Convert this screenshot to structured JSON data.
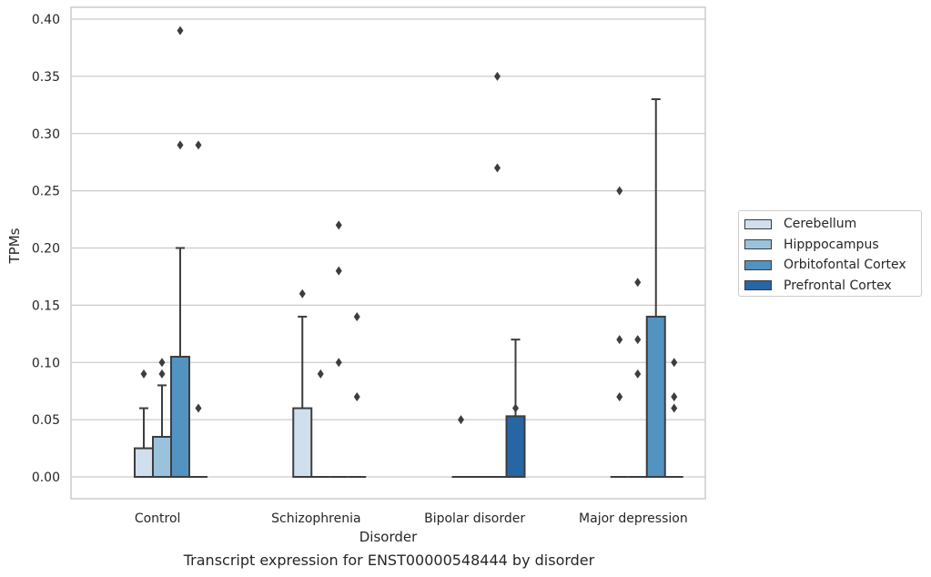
{
  "chart_data": {
    "type": "box",
    "caption": "Transcript expression for ENST00000548444 by disorder",
    "xlabel": "Disorder",
    "ylabel": "TPMs",
    "ylim": [
      -0.019,
      0.41
    ],
    "yticks": [
      "0.00",
      "0.05",
      "0.10",
      "0.15",
      "0.20",
      "0.25",
      "0.30",
      "0.35",
      "0.40"
    ],
    "grid": true,
    "legend_position": "right",
    "categories": [
      "Control",
      "Schizophrenia",
      "Bipolar disorder",
      "Major depression"
    ],
    "series": [
      {
        "name": "Cerebellum",
        "color": "#d0dfee",
        "boxes": [
          {
            "q1": 0.0,
            "median": 0.0,
            "q3": 0.025,
            "whisker_low": 0.0,
            "whisker_high": 0.06,
            "outliers": [
              0.09
            ]
          },
          {
            "q1": 0.0,
            "median": 0.0,
            "q3": 0.06,
            "whisker_low": 0.0,
            "whisker_high": 0.14,
            "outliers": [
              0.16
            ]
          },
          {
            "q1": 0.0,
            "median": 0.0,
            "q3": 0.0,
            "whisker_low": 0.0,
            "whisker_high": 0.0,
            "outliers": [
              0.05
            ]
          },
          {
            "q1": 0.0,
            "median": 0.0,
            "q3": 0.0,
            "whisker_low": 0.0,
            "whisker_high": 0.0,
            "outliers": [
              0.07,
              0.12,
              0.25
            ]
          }
        ]
      },
      {
        "name": "Hipppocampus",
        "color": "#9bc2dc",
        "boxes": [
          {
            "q1": 0.0,
            "median": 0.0,
            "q3": 0.035,
            "whisker_low": 0.0,
            "whisker_high": 0.08,
            "outliers": [
              0.09,
              0.1
            ]
          },
          {
            "q1": 0.0,
            "median": 0.0,
            "q3": 0.0,
            "whisker_low": 0.0,
            "whisker_high": 0.0,
            "outliers": [
              0.09
            ]
          },
          {
            "q1": 0.0,
            "median": 0.0,
            "q3": 0.0,
            "whisker_low": 0.0,
            "whisker_high": 0.0,
            "outliers": []
          },
          {
            "q1": 0.0,
            "median": 0.0,
            "q3": 0.0,
            "whisker_low": 0.0,
            "whisker_high": 0.0,
            "outliers": [
              0.09,
              0.12,
              0.17
            ]
          }
        ]
      },
      {
        "name": "Orbitofontal Cortex",
        "color": "#5293c1",
        "boxes": [
          {
            "q1": 0.0,
            "median": 0.0,
            "q3": 0.105,
            "whisker_low": 0.0,
            "whisker_high": 0.2,
            "outliers": [
              0.29,
              0.39
            ]
          },
          {
            "q1": 0.0,
            "median": 0.0,
            "q3": 0.0,
            "whisker_low": 0.0,
            "whisker_high": 0.0,
            "outliers": [
              0.1,
              0.18,
              0.22
            ]
          },
          {
            "q1": 0.0,
            "median": 0.0,
            "q3": 0.0,
            "whisker_low": 0.0,
            "whisker_high": 0.0,
            "outliers": [
              0.27,
              0.35
            ]
          },
          {
            "q1": 0.0,
            "median": 0.0,
            "q3": 0.14,
            "whisker_low": 0.0,
            "whisker_high": 0.33,
            "outliers": []
          }
        ]
      },
      {
        "name": "Prefrontal Cortex",
        "color": "#2766a5",
        "boxes": [
          {
            "q1": 0.0,
            "median": 0.0,
            "q3": 0.0,
            "whisker_low": 0.0,
            "whisker_high": 0.0,
            "outliers": [
              0.06,
              0.29
            ]
          },
          {
            "q1": 0.0,
            "median": 0.0,
            "q3": 0.0,
            "whisker_low": 0.0,
            "whisker_high": 0.0,
            "outliers": [
              0.07,
              0.14
            ]
          },
          {
            "q1": 0.0,
            "median": 0.0,
            "q3": 0.053,
            "whisker_low": 0.0,
            "whisker_high": 0.12,
            "outliers": [
              0.06
            ]
          },
          {
            "q1": 0.0,
            "median": 0.0,
            "q3": 0.0,
            "whisker_low": 0.0,
            "whisker_high": 0.0,
            "outliers": [
              0.06,
              0.07,
              0.1
            ]
          }
        ]
      }
    ]
  }
}
